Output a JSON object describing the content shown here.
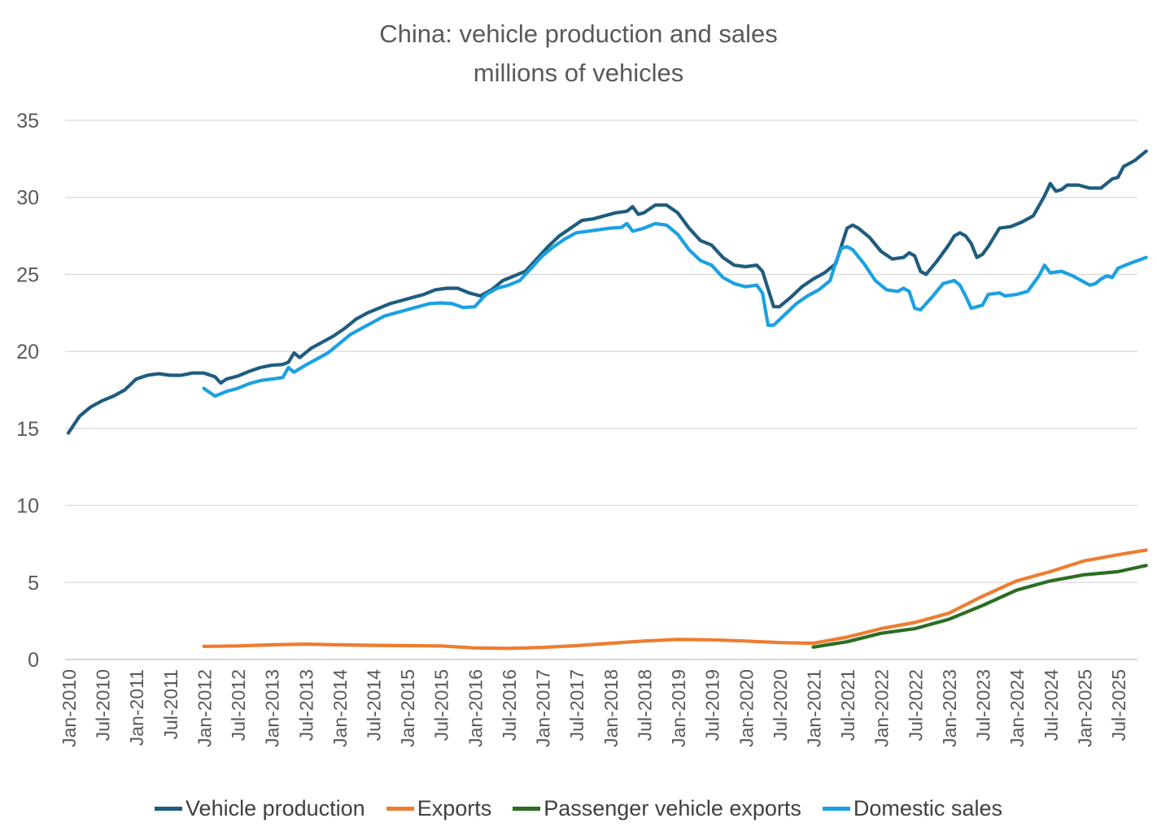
{
  "chart_data": {
    "type": "line",
    "title": "China: vehicle production and sales",
    "subtitle": "millions of vehicles",
    "xlabel": "",
    "ylabel": "",
    "ylim": [
      0,
      35
    ],
    "yticks": [
      0,
      5,
      10,
      15,
      20,
      25,
      30,
      35
    ],
    "x_start": "Jan-2010",
    "x_end": "Jul-2025",
    "x_tick_labels": [
      "Jan-2010",
      "Jul-2010",
      "Jan-2011",
      "Jul-2011",
      "Jan-2012",
      "Jul-2012",
      "Jan-2013",
      "Jul-2013",
      "Jan-2014",
      "Jul-2014",
      "Jan-2015",
      "Jul-2015",
      "Jan-2016",
      "Jul-2016",
      "Jan-2017",
      "Jul-2017",
      "Jan-2018",
      "Jul-2018",
      "Jan-2019",
      "Jul-2019",
      "Jan-2020",
      "Jul-2020",
      "Jan-2021",
      "Jul-2021",
      "Jan-2022",
      "Jul-2022",
      "Jan-2023",
      "Jul-2023",
      "Jan-2024",
      "Jul-2024",
      "Jan-2025",
      "Jul-2025"
    ],
    "grid": true,
    "legend_position": "bottom",
    "series": [
      {
        "name": "Vehicle production",
        "color": "#1f5c7f",
        "points": [
          [
            "2010-01",
            14.7
          ],
          [
            "2010-03",
            15.8
          ],
          [
            "2010-05",
            16.4
          ],
          [
            "2010-07",
            16.8
          ],
          [
            "2010-09",
            17.1
          ],
          [
            "2010-11",
            17.5
          ],
          [
            "2011-01",
            18.2
          ],
          [
            "2011-03",
            18.45
          ],
          [
            "2011-05",
            18.55
          ],
          [
            "2011-07",
            18.45
          ],
          [
            "2011-09",
            18.45
          ],
          [
            "2011-11",
            18.6
          ],
          [
            "2012-01",
            18.6
          ],
          [
            "2012-03",
            18.35
          ],
          [
            "2012-04",
            17.95
          ],
          [
            "2012-05",
            18.2
          ],
          [
            "2012-07",
            18.4
          ],
          [
            "2012-09",
            18.7
          ],
          [
            "2012-11",
            18.95
          ],
          [
            "2013-01",
            19.1
          ],
          [
            "2013-03",
            19.15
          ],
          [
            "2013-04",
            19.3
          ],
          [
            "2013-05",
            19.9
          ],
          [
            "2013-06",
            19.6
          ],
          [
            "2013-08",
            20.2
          ],
          [
            "2013-10",
            20.6
          ],
          [
            "2013-12",
            21.0
          ],
          [
            "2014-02",
            21.5
          ],
          [
            "2014-04",
            22.1
          ],
          [
            "2014-06",
            22.5
          ],
          [
            "2014-08",
            22.8
          ],
          [
            "2014-10",
            23.1
          ],
          [
            "2014-12",
            23.3
          ],
          [
            "2015-02",
            23.5
          ],
          [
            "2015-04",
            23.7
          ],
          [
            "2015-06",
            24.0
          ],
          [
            "2015-08",
            24.1
          ],
          [
            "2015-10",
            24.1
          ],
          [
            "2015-12",
            23.8
          ],
          [
            "2016-02",
            23.6
          ],
          [
            "2016-04",
            24.0
          ],
          [
            "2016-06",
            24.6
          ],
          [
            "2016-08",
            24.9
          ],
          [
            "2016-10",
            25.2
          ],
          [
            "2016-12",
            26.0
          ],
          [
            "2017-02",
            26.8
          ],
          [
            "2017-04",
            27.5
          ],
          [
            "2017-06",
            28.0
          ],
          [
            "2017-08",
            28.5
          ],
          [
            "2017-10",
            28.6
          ],
          [
            "2017-12",
            28.8
          ],
          [
            "2018-02",
            29.0
          ],
          [
            "2018-04",
            29.1
          ],
          [
            "2018-05",
            29.4
          ],
          [
            "2018-06",
            28.9
          ],
          [
            "2018-07",
            29.0
          ],
          [
            "2018-09",
            29.5
          ],
          [
            "2018-11",
            29.5
          ],
          [
            "2019-01",
            29.0
          ],
          [
            "2019-03",
            28.0
          ],
          [
            "2019-05",
            27.2
          ],
          [
            "2019-07",
            26.9
          ],
          [
            "2019-09",
            26.1
          ],
          [
            "2019-11",
            25.6
          ],
          [
            "2020-01",
            25.5
          ],
          [
            "2020-03",
            25.6
          ],
          [
            "2020-04",
            25.2
          ],
          [
            "2020-06",
            22.9
          ],
          [
            "2020-07",
            22.9
          ],
          [
            "2020-09",
            23.5
          ],
          [
            "2020-11",
            24.2
          ],
          [
            "2021-01",
            24.7
          ],
          [
            "2021-03",
            25.1
          ],
          [
            "2021-05",
            25.7
          ],
          [
            "2021-07",
            28.0
          ],
          [
            "2021-08",
            28.2
          ],
          [
            "2021-09",
            28.0
          ],
          [
            "2021-11",
            27.4
          ],
          [
            "2022-01",
            26.5
          ],
          [
            "2022-03",
            26.0
          ],
          [
            "2022-05",
            26.1
          ],
          [
            "2022-06",
            26.4
          ],
          [
            "2022-07",
            26.2
          ],
          [
            "2022-08",
            25.2
          ],
          [
            "2022-09",
            25.0
          ],
          [
            "2022-11",
            25.9
          ],
          [
            "2023-01",
            26.9
          ],
          [
            "2023-02",
            27.5
          ],
          [
            "2023-03",
            27.7
          ],
          [
            "2023-04",
            27.5
          ],
          [
            "2023-05",
            27.0
          ],
          [
            "2023-06",
            26.1
          ],
          [
            "2023-07",
            26.3
          ],
          [
            "2023-08",
            26.8
          ],
          [
            "2023-10",
            28.0
          ],
          [
            "2023-12",
            28.1
          ],
          [
            "2024-02",
            28.4
          ],
          [
            "2024-04",
            28.8
          ],
          [
            "2024-06",
            30.1
          ],
          [
            "2024-07",
            30.9
          ],
          [
            "2024-08",
            30.4
          ],
          [
            "2024-09",
            30.5
          ],
          [
            "2024-10",
            30.8
          ],
          [
            "2024-12",
            30.8
          ],
          [
            "2025-02",
            30.6
          ],
          [
            "2025-04",
            30.6
          ],
          [
            "2025-06",
            31.2
          ],
          [
            "2025-07",
            31.3
          ],
          [
            "2025-08",
            32.0
          ],
          [
            "2025-10",
            32.4
          ],
          [
            "2025-12",
            33.0
          ]
        ]
      },
      {
        "name": "Exports",
        "color": "#ed7d31",
        "points": [
          [
            "2012-01",
            0.85
          ],
          [
            "2012-07",
            0.88
          ],
          [
            "2013-01",
            0.95
          ],
          [
            "2013-07",
            1.0
          ],
          [
            "2014-01",
            0.95
          ],
          [
            "2014-07",
            0.92
          ],
          [
            "2015-01",
            0.9
          ],
          [
            "2015-07",
            0.88
          ],
          [
            "2016-01",
            0.75
          ],
          [
            "2016-07",
            0.72
          ],
          [
            "2017-01",
            0.78
          ],
          [
            "2017-07",
            0.9
          ],
          [
            "2018-01",
            1.05
          ],
          [
            "2018-07",
            1.2
          ],
          [
            "2019-01",
            1.3
          ],
          [
            "2019-07",
            1.28
          ],
          [
            "2020-01",
            1.2
          ],
          [
            "2020-07",
            1.1
          ],
          [
            "2021-01",
            1.05
          ],
          [
            "2021-07",
            1.45
          ],
          [
            "2022-01",
            2.0
          ],
          [
            "2022-07",
            2.4
          ],
          [
            "2023-01",
            3.0
          ],
          [
            "2023-07",
            4.1
          ],
          [
            "2024-01",
            5.1
          ],
          [
            "2024-07",
            5.7
          ],
          [
            "2025-01",
            6.4
          ],
          [
            "2025-07",
            6.8
          ],
          [
            "2025-12",
            7.1
          ]
        ]
      },
      {
        "name": "Passenger vehicle exports",
        "color": "#2b6d21",
        "points": [
          [
            "2021-01",
            0.8
          ],
          [
            "2021-07",
            1.15
          ],
          [
            "2022-01",
            1.7
          ],
          [
            "2022-07",
            2.0
          ],
          [
            "2023-01",
            2.6
          ],
          [
            "2023-07",
            3.5
          ],
          [
            "2024-01",
            4.5
          ],
          [
            "2024-07",
            5.1
          ],
          [
            "2025-01",
            5.5
          ],
          [
            "2025-07",
            5.7
          ],
          [
            "2025-12",
            6.1
          ]
        ]
      },
      {
        "name": "Domestic sales",
        "color": "#1ba1e2",
        "points": [
          [
            "2012-01",
            17.6
          ],
          [
            "2012-03",
            17.1
          ],
          [
            "2012-05",
            17.4
          ],
          [
            "2012-07",
            17.6
          ],
          [
            "2012-09",
            17.9
          ],
          [
            "2012-11",
            18.1
          ],
          [
            "2013-01",
            18.2
          ],
          [
            "2013-03",
            18.3
          ],
          [
            "2013-04",
            18.95
          ],
          [
            "2013-05",
            18.65
          ],
          [
            "2013-07",
            19.1
          ],
          [
            "2013-09",
            19.5
          ],
          [
            "2013-11",
            19.9
          ],
          [
            "2014-01",
            20.5
          ],
          [
            "2014-03",
            21.1
          ],
          [
            "2014-05",
            21.5
          ],
          [
            "2014-07",
            21.9
          ],
          [
            "2014-09",
            22.3
          ],
          [
            "2014-11",
            22.5
          ],
          [
            "2015-01",
            22.7
          ],
          [
            "2015-03",
            22.9
          ],
          [
            "2015-05",
            23.1
          ],
          [
            "2015-07",
            23.15
          ],
          [
            "2015-09",
            23.1
          ],
          [
            "2015-11",
            22.85
          ],
          [
            "2016-01",
            22.9
          ],
          [
            "2016-03",
            23.7
          ],
          [
            "2016-05",
            24.1
          ],
          [
            "2016-07",
            24.3
          ],
          [
            "2016-09",
            24.6
          ],
          [
            "2016-11",
            25.4
          ],
          [
            "2017-01",
            26.2
          ],
          [
            "2017-03",
            26.8
          ],
          [
            "2017-05",
            27.3
          ],
          [
            "2017-07",
            27.7
          ],
          [
            "2017-09",
            27.8
          ],
          [
            "2017-11",
            27.9
          ],
          [
            "2018-01",
            28.0
          ],
          [
            "2018-03",
            28.05
          ],
          [
            "2018-04",
            28.3
          ],
          [
            "2018-05",
            27.8
          ],
          [
            "2018-07",
            28.0
          ],
          [
            "2018-09",
            28.3
          ],
          [
            "2018-11",
            28.2
          ],
          [
            "2019-01",
            27.6
          ],
          [
            "2019-03",
            26.6
          ],
          [
            "2019-05",
            25.9
          ],
          [
            "2019-07",
            25.6
          ],
          [
            "2019-09",
            24.8
          ],
          [
            "2019-11",
            24.4
          ],
          [
            "2020-01",
            24.2
          ],
          [
            "2020-03",
            24.3
          ],
          [
            "2020-04",
            23.8
          ],
          [
            "2020-05",
            21.7
          ],
          [
            "2020-06",
            21.7
          ],
          [
            "2020-08",
            22.4
          ],
          [
            "2020-10",
            23.1
          ],
          [
            "2020-12",
            23.6
          ],
          [
            "2021-02",
            24.0
          ],
          [
            "2021-04",
            24.6
          ],
          [
            "2021-05",
            25.8
          ],
          [
            "2021-06",
            26.7
          ],
          [
            "2021-07",
            26.8
          ],
          [
            "2021-08",
            26.6
          ],
          [
            "2021-10",
            25.7
          ],
          [
            "2021-12",
            24.6
          ],
          [
            "2022-02",
            24.0
          ],
          [
            "2022-04",
            23.9
          ],
          [
            "2022-05",
            24.1
          ],
          [
            "2022-06",
            23.9
          ],
          [
            "2022-07",
            22.8
          ],
          [
            "2022-08",
            22.7
          ],
          [
            "2022-10",
            23.5
          ],
          [
            "2022-12",
            24.4
          ],
          [
            "2023-02",
            24.6
          ],
          [
            "2023-03",
            24.3
          ],
          [
            "2023-04",
            23.6
          ],
          [
            "2023-05",
            22.8
          ],
          [
            "2023-07",
            23.0
          ],
          [
            "2023-08",
            23.7
          ],
          [
            "2023-10",
            23.8
          ],
          [
            "2023-11",
            23.6
          ],
          [
            "2024-01",
            23.7
          ],
          [
            "2024-03",
            23.9
          ],
          [
            "2024-05",
            24.9
          ],
          [
            "2024-06",
            25.6
          ],
          [
            "2024-07",
            25.1
          ],
          [
            "2024-09",
            25.2
          ],
          [
            "2024-11",
            24.9
          ],
          [
            "2025-01",
            24.5
          ],
          [
            "2025-02",
            24.3
          ],
          [
            "2025-03",
            24.4
          ],
          [
            "2025-04",
            24.7
          ],
          [
            "2025-05",
            24.9
          ],
          [
            "2025-06",
            24.8
          ],
          [
            "2025-07",
            25.4
          ],
          [
            "2025-09",
            25.7
          ],
          [
            "2025-12",
            26.1
          ]
        ]
      }
    ]
  }
}
